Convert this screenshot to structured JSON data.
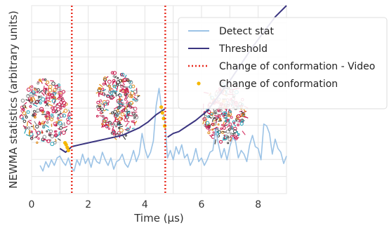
{
  "chart_data": {
    "type": "line",
    "title": "",
    "xlabel": "Time (μs)",
    "ylabel": "NEWMA statistics (arbitrary units)",
    "xlim": [
      0,
      9
    ],
    "xticks": [
      0,
      2,
      4,
      6,
      8
    ],
    "ylim": [
      0,
      10
    ],
    "grid": true,
    "legend_position": "top-right",
    "colors": {
      "detect": "#9cc3e6",
      "threshold": "#3b3580",
      "video_change": "#e8291c",
      "conformation_change": "#f5b700"
    },
    "legend": [
      {
        "label": "Detect stat",
        "style": "line",
        "color": "#9cc3e6"
      },
      {
        "label": "Threshold",
        "style": "line",
        "color": "#3b3580"
      },
      {
        "label": "Change of conformation - Video",
        "style": "dotted",
        "color": "#e8291c"
      },
      {
        "label": "Change of conformation",
        "style": "marker",
        "color": "#f5b700"
      }
    ],
    "video_changes_x": [
      1.42,
      4.72
    ],
    "series": [
      {
        "name": "Detect stat",
        "x": [
          0.3,
          0.4,
          0.5,
          0.6,
          0.7,
          0.8,
          0.9,
          1.0,
          1.1,
          1.2,
          1.3,
          1.4,
          1.5,
          1.6,
          1.7,
          1.8,
          1.9,
          2.0,
          2.1,
          2.2,
          2.3,
          2.4,
          2.5,
          2.6,
          2.7,
          2.8,
          2.9,
          3.0,
          3.1,
          3.2,
          3.3,
          3.4,
          3.5,
          3.6,
          3.7,
          3.8,
          3.9,
          4.0,
          4.1,
          4.2,
          4.3,
          4.4,
          4.5,
          4.6,
          4.7,
          4.8,
          4.9,
          5.0,
          5.1,
          5.2,
          5.3,
          5.4,
          5.5,
          5.6,
          5.7,
          5.8,
          5.9,
          6.0,
          6.1,
          6.2,
          6.3,
          6.4,
          6.5,
          6.6,
          6.7,
          6.8,
          6.9,
          7.0,
          7.1,
          7.2,
          7.3,
          7.4,
          7.5,
          7.6,
          7.7,
          7.8,
          7.9,
          8.0,
          8.1,
          8.2,
          8.3,
          8.4,
          8.5,
          8.6,
          8.7,
          8.8,
          8.9,
          9.0
        ],
        "values": [
          1.5,
          1.2,
          1.7,
          1.4,
          1.8,
          1.5,
          1.9,
          2.0,
          1.7,
          1.5,
          1.9,
          1.4,
          1.2,
          1.8,
          1.5,
          2.1,
          1.6,
          1.9,
          1.4,
          2.0,
          1.7,
          1.6,
          2.2,
          1.8,
          1.5,
          1.9,
          1.3,
          1.7,
          1.8,
          2.1,
          1.6,
          1.4,
          1.8,
          2.3,
          1.7,
          2.1,
          3.2,
          2.4,
          1.9,
          2.2,
          2.8,
          4.7,
          5.6,
          4.4,
          4.0,
          1.9,
          2.3,
          1.8,
          2.5,
          2.1,
          2.6,
          1.9,
          2.1,
          1.5,
          1.8,
          2.4,
          1.7,
          1.9,
          1.5,
          1.8,
          2.2,
          2.3,
          3.4,
          2.6,
          1.9,
          2.4,
          1.8,
          2.5,
          3.0,
          2.8,
          1.9,
          2.3,
          2.1,
          1.7,
          2.6,
          3.1,
          2.5,
          2.4,
          1.8,
          3.7,
          3.6,
          3.2,
          2.1,
          2.9,
          2.4,
          2.2,
          1.6,
          2.0
        ]
      },
      {
        "name": "Threshold",
        "x": [
          1.0,
          1.2,
          1.42,
          1.7,
          2.0,
          2.3,
          2.6,
          2.9,
          3.2,
          3.5,
          3.8,
          4.1,
          4.4,
          4.7,
          4.8,
          5.0,
          5.2,
          5.5,
          5.8,
          6.2,
          6.6,
          7.0,
          7.4,
          7.8,
          8.2,
          8.6,
          9.0
        ],
        "values": [
          2.4,
          2.2,
          2.5,
          2.6,
          2.7,
          2.8,
          2.9,
          3.0,
          3.1,
          3.3,
          3.5,
          3.8,
          4.2,
          4.5,
          3.0,
          3.2,
          3.3,
          3.6,
          3.9,
          4.4,
          5.2,
          6.0,
          6.9,
          7.8,
          8.6,
          9.4,
          10.0
        ]
      },
      {
        "name": "Change of conformation",
        "x": [
          1.18,
          1.22,
          1.26,
          1.3,
          4.58,
          4.62,
          4.66,
          4.7
        ],
        "values": [
          2.7,
          2.6,
          2.45,
          2.3,
          4.6,
          4.3,
          4.0,
          3.6
        ]
      }
    ]
  }
}
